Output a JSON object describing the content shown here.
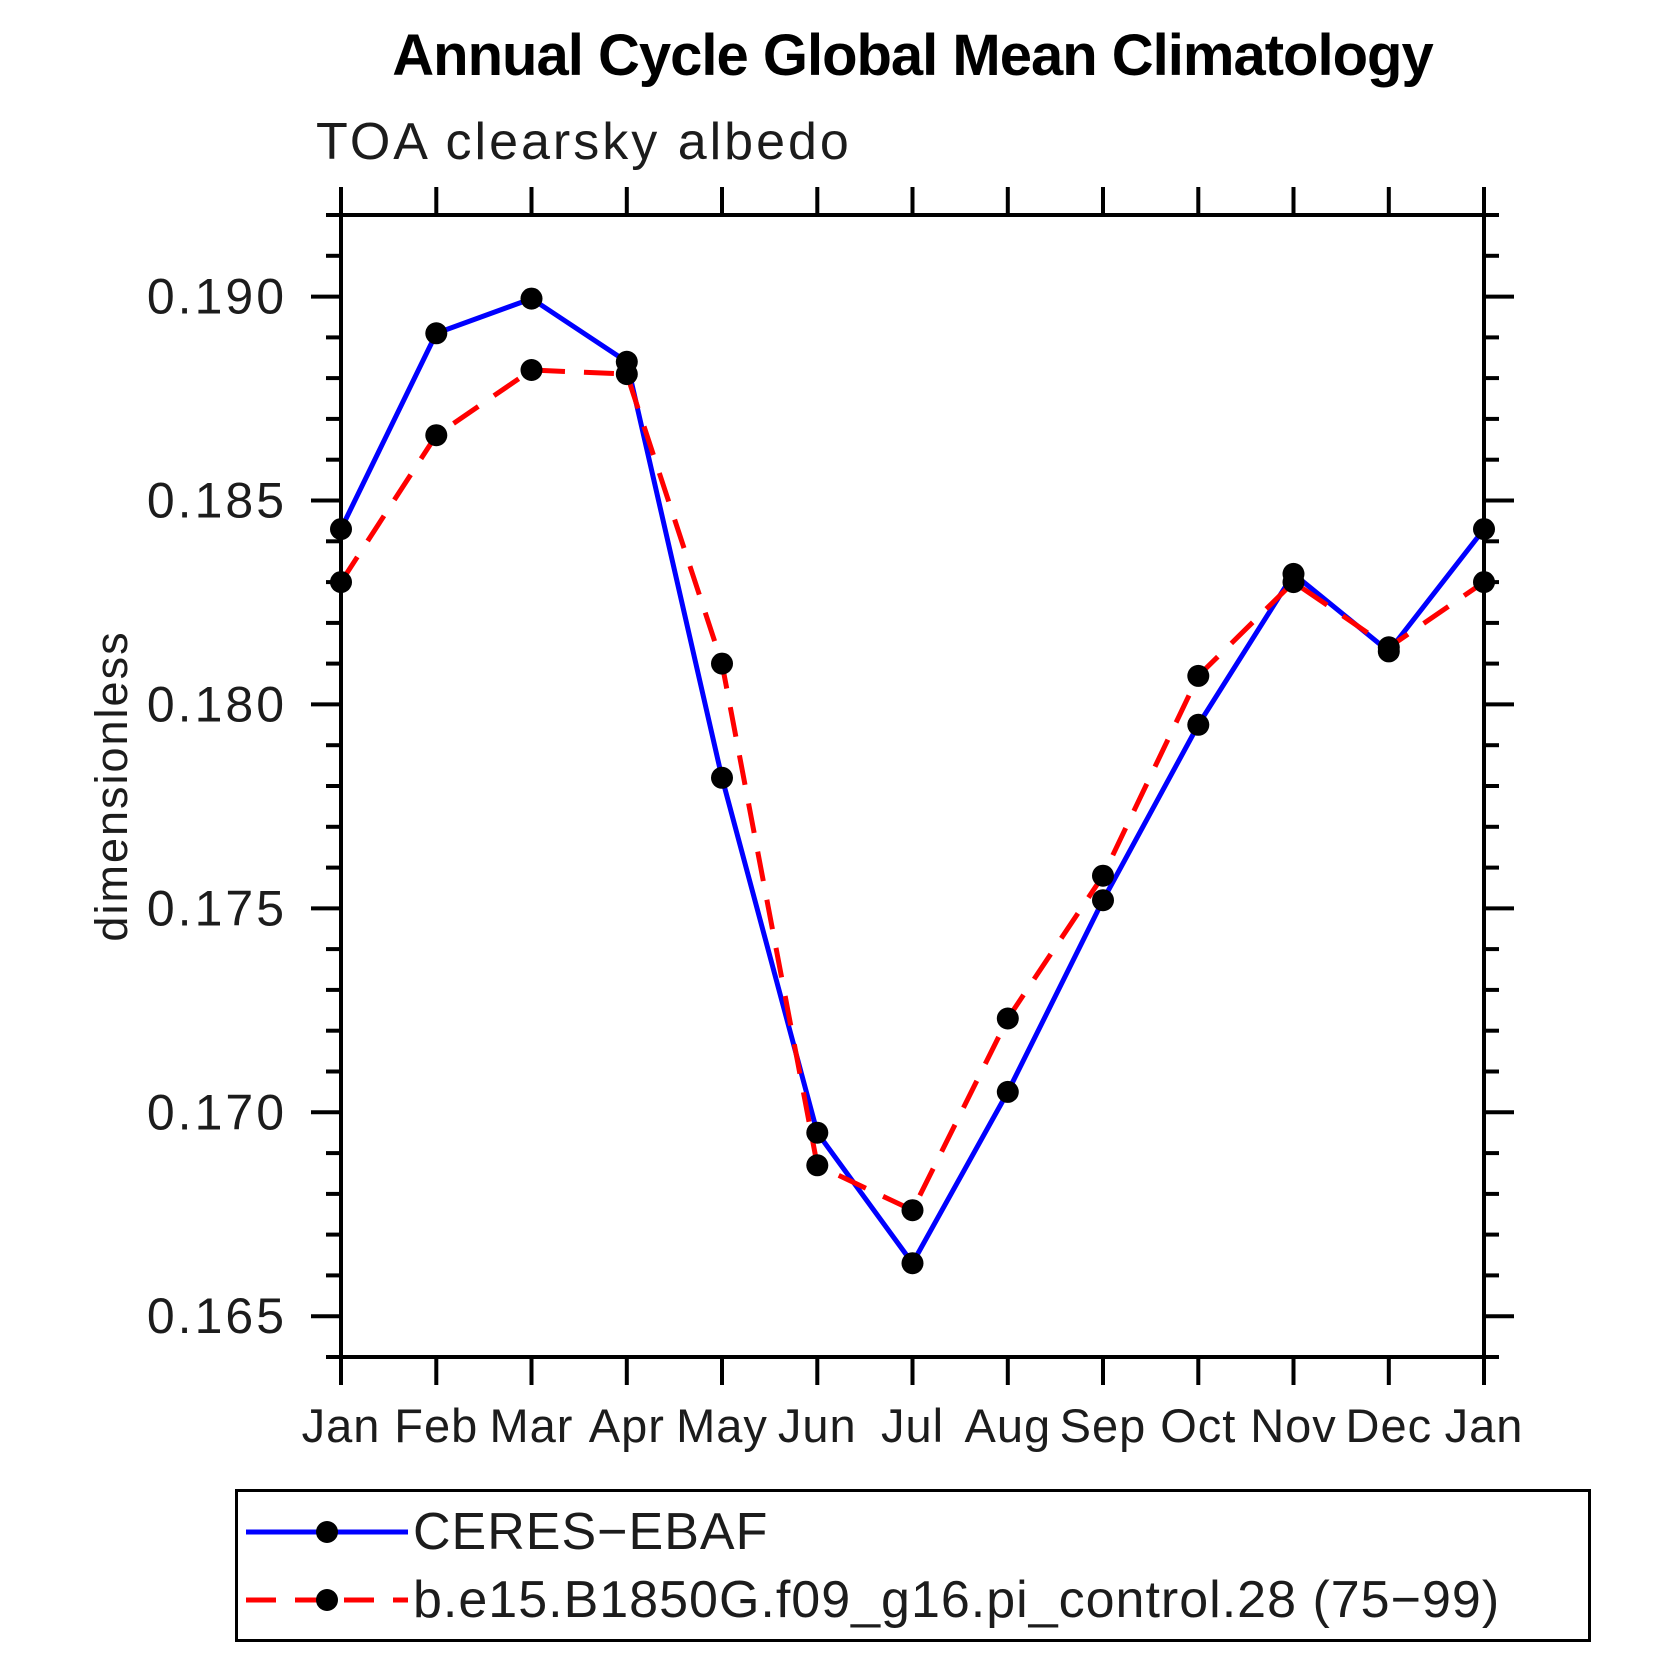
{
  "title": "Annual Cycle Global Mean Climatology",
  "subtitle": "TOA clearsky albedo",
  "y_axis_title": "dimensionless",
  "chart_data": {
    "type": "line",
    "x_categories": [
      "Jan",
      "Feb",
      "Mar",
      "Apr",
      "May",
      "Jun",
      "Jul",
      "Aug",
      "Sep",
      "Oct",
      "Nov",
      "Dec",
      "Jan"
    ],
    "series": [
      {
        "name": "CERES−EBAF",
        "color": "#0000ff",
        "line_style": "solid",
        "marker": "filled-circle",
        "marker_color": "#000000",
        "values": [
          0.1843,
          0.1891,
          0.18995,
          0.1884,
          0.1782,
          0.1695,
          0.1663,
          0.1705,
          0.1752,
          0.1795,
          0.1832,
          0.1813,
          0.1843
        ]
      },
      {
        "name": "b.e15.B1850G.f09_g16.pi_control.28 (75−99)",
        "color": "#ff0000",
        "line_style": "dashed",
        "marker": "filled-circle",
        "marker_color": "#000000",
        "values": [
          0.183,
          0.1866,
          0.1882,
          0.1881,
          0.181,
          0.1687,
          0.1676,
          0.1723,
          0.1758,
          0.1807,
          0.183,
          0.1814,
          0.183
        ]
      }
    ],
    "ylim": [
      0.164,
      0.192
    ],
    "ytick_major": [
      0.165,
      0.17,
      0.175,
      0.18,
      0.185,
      0.19
    ],
    "ytick_labels": [
      "0.165",
      "0.170",
      "0.175",
      "0.180",
      "0.185",
      "0.190"
    ],
    "ytick_minor_step": 0.001,
    "grid": false,
    "legend_position": "bottom-left",
    "axis_color": "#000000"
  }
}
